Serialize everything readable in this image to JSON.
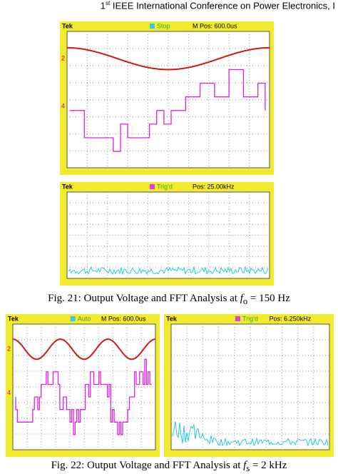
{
  "header": {
    "ordinal": "1",
    "suffix": "st",
    "text": "IEEE International Conference on Power Electronics, I"
  },
  "figures": [
    {
      "scopes": [
        {
          "brand": "Tek",
          "status": "Stop",
          "position": "M Pos: 600.0us",
          "channels": [
            "2",
            "4"
          ]
        },
        {
          "brand": "Tek",
          "status": "Trig'd",
          "position": "Pos: 25.00kHz"
        }
      ],
      "caption": {
        "lead": "Fig. 21: Output Voltage and FFT Analysis at ",
        "symbol": "f",
        "sub": "o",
        "tail": " = 150 Hz"
      }
    },
    {
      "scopes": [
        {
          "brand": "Tek",
          "status": "Auto",
          "position": "M Pos: 600.0us",
          "channels": [
            "2",
            "4"
          ]
        },
        {
          "brand": "Tek",
          "status": "Trig'd",
          "position": "Pos: 6.250kHz"
        }
      ],
      "caption": {
        "lead": "Fig. 22: Output Voltage and FFT Analysis at ",
        "symbol": "f",
        "sub": "s",
        "tail": " = 2 kHz"
      }
    }
  ]
}
